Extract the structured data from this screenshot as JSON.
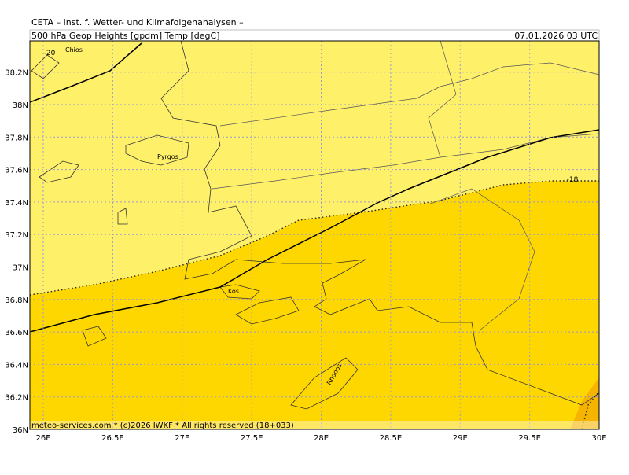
{
  "header": {
    "institute": "CETA – Inst. f. Wetter- und Klimafolgenanalysen –",
    "product": "500 hPa Geop Heights [gpdm] Temp [degC]",
    "valid_time": "07.01.2026 03 UTC"
  },
  "footer": "meteo-services.com * (c)2026 IWKF * All rights reserved (18+033)",
  "map": {
    "lat_ticks": [
      {
        "value": 38.2,
        "label": "38.2N"
      },
      {
        "value": 38,
        "label": "38N"
      },
      {
        "value": 37.8,
        "label": "37.8N"
      },
      {
        "value": 37.6,
        "label": "37.6N"
      },
      {
        "value": 37.4,
        "label": "37.4N"
      },
      {
        "value": 37.2,
        "label": "37.2N"
      },
      {
        "value": 37,
        "label": "37N"
      },
      {
        "value": 36.8,
        "label": "36.8N"
      },
      {
        "value": 36.6,
        "label": "36.6N"
      },
      {
        "value": 36.4,
        "label": "36.4N"
      },
      {
        "value": 36.2,
        "label": "36.2N"
      },
      {
        "value": 36,
        "label": "36N"
      }
    ],
    "lon_ticks": [
      {
        "value": 26,
        "label": "26E"
      },
      {
        "value": 26.5,
        "label": "26.5E"
      },
      {
        "value": 27,
        "label": "27E"
      },
      {
        "value": 27.5,
        "label": "27.5E"
      },
      {
        "value": 28,
        "label": "28E"
      },
      {
        "value": 28.5,
        "label": "28.5E"
      },
      {
        "value": 29,
        "label": "29E"
      },
      {
        "value": 29.5,
        "label": "29.5E"
      },
      {
        "value": 30,
        "label": "30E"
      }
    ],
    "places": [
      "Chios",
      "Pyrgos",
      "Kos",
      "Rhodos"
    ],
    "contour_labels": [
      "-20",
      "-18"
    ]
  }
}
